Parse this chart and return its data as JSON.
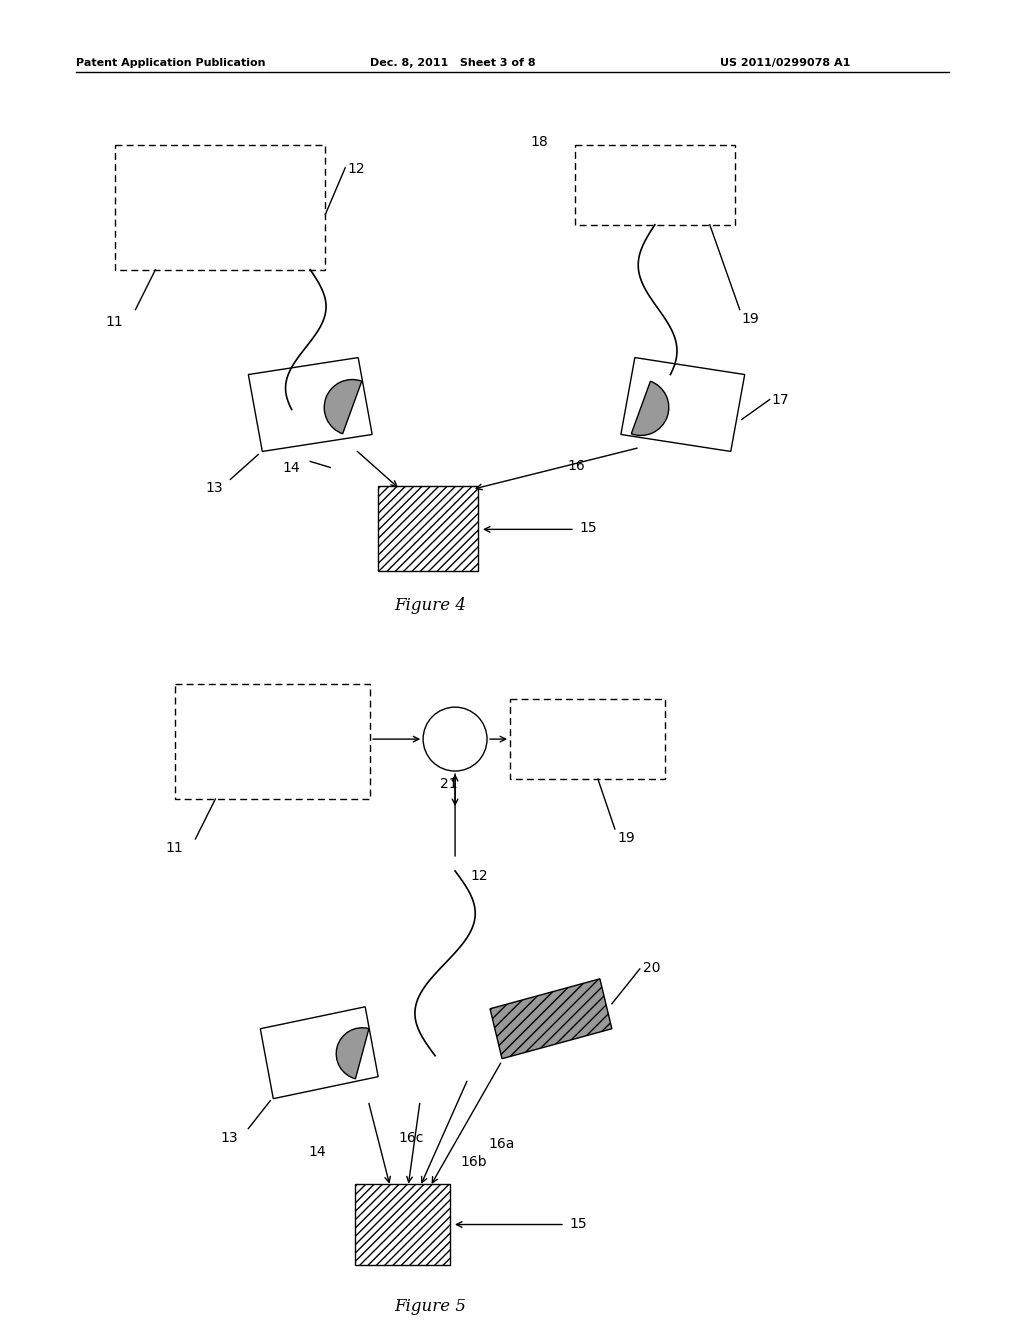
{
  "fig_width": 10.24,
  "fig_height": 13.2,
  "bg_color": "#ffffff",
  "header_text1": "Patent Application Publication",
  "header_text2": "Dec. 8, 2011   Sheet 3 of 8",
  "header_text3": "US 2011/0299078 A1",
  "fig4_caption": "Figure 4",
  "fig5_caption": "Figure 5",
  "lc": "#000000",
  "gray": "#999999",
  "hatch_gray": "#888888"
}
